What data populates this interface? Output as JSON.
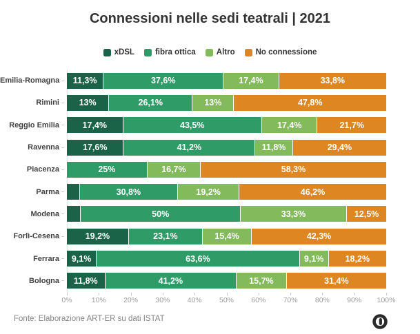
{
  "chart_data": {
    "type": "bar",
    "variant": "horizontal-stacked",
    "title": "Connessioni nelle sedi teatrali | 2021",
    "source_note": "Fonte: Elaborazione ART-ER su dati ISTAT",
    "legend_position": "top-center",
    "grid": false,
    "xlim": [
      0,
      100
    ],
    "x_ticks": [
      "0%",
      "10%",
      "20%",
      "30%",
      "40%",
      "50%",
      "60%",
      "70%",
      "80%",
      "90%",
      "100%"
    ],
    "series": [
      {
        "name": "xDSL",
        "color": "#1a6248"
      },
      {
        "name": "fibra ottica",
        "color": "#2f9b67"
      },
      {
        "name": "Altro",
        "color": "#82ba5c"
      },
      {
        "name": "No connessione",
        "color": "#de8621"
      }
    ],
    "rows": [
      {
        "category": "Emilia-Romagna",
        "values": [
          11.3,
          37.6,
          17.4,
          33.8
        ],
        "labels": [
          "11,3%",
          "37,6%",
          "17,4%",
          "33,8%"
        ]
      },
      {
        "category": "Rimini",
        "values": [
          13,
          26.1,
          13,
          47.8
        ],
        "labels": [
          "13%",
          "26,1%",
          "13%",
          "47,8%"
        ]
      },
      {
        "category": "Reggio Emilia",
        "values": [
          17.4,
          43.5,
          17.4,
          21.7
        ],
        "labels": [
          "17,4%",
          "43,5%",
          "17,4%",
          "21,7%"
        ]
      },
      {
        "category": "Ravenna",
        "values": [
          17.6,
          41.2,
          11.8,
          29.4
        ],
        "labels": [
          "17,6%",
          "41,2%",
          "11,8%",
          "29,4%"
        ]
      },
      {
        "category": "Piacenza",
        "values": [
          0,
          25,
          16.7,
          58.3
        ],
        "labels": [
          "",
          "25%",
          "16,7%",
          "58,3%"
        ]
      },
      {
        "category": "Parma",
        "values": [
          3.8,
          30.8,
          19.2,
          46.2
        ],
        "labels": [
          "",
          "30,8%",
          "19,2%",
          "46,2%"
        ]
      },
      {
        "category": "Modena",
        "values": [
          4.2,
          50,
          33.3,
          12.5
        ],
        "labels": [
          "",
          "50%",
          "33,3%",
          "12,5%"
        ]
      },
      {
        "category": "Forlì-Cesena",
        "values": [
          19.2,
          23.1,
          15.4,
          42.3
        ],
        "labels": [
          "19,2%",
          "23,1%",
          "15,4%",
          "42,3%"
        ]
      },
      {
        "category": "Ferrara",
        "values": [
          9.1,
          63.6,
          9.1,
          18.2
        ],
        "labels": [
          "9,1%",
          "63,6%",
          "9,1%",
          "18,2%"
        ]
      },
      {
        "category": "Bologna",
        "values": [
          11.8,
          41.2,
          15.7,
          31.4
        ],
        "labels": [
          "11,8%",
          "41,2%",
          "15,7%",
          "31,4%"
        ]
      }
    ]
  },
  "footer": {
    "source": "Fonte: Elaborazione ART-ER su dati ISTAT",
    "logo_icon": "datawrapper-logo"
  }
}
